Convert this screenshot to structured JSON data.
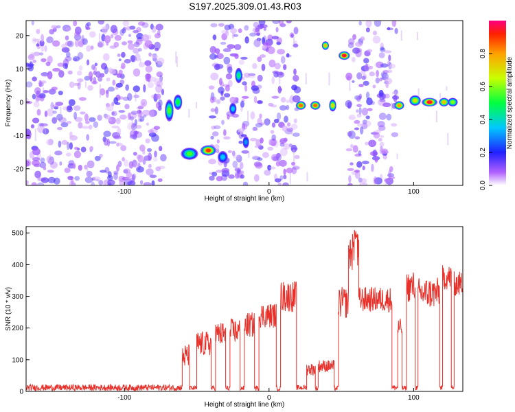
{
  "title": "S197.2025.309.01.43.R03",
  "chart_data": [
    {
      "type": "heatmap",
      "name": "spectrogram",
      "xlabel": "Height of straight line (km)",
      "ylabel": "Frequency (Hz)",
      "xlim": [
        -168,
        134
      ],
      "ylim": [
        -25,
        24.5
      ],
      "xticks": [
        -100,
        0,
        100
      ],
      "xtick_labels": [
        "-100",
        "0",
        "100"
      ],
      "yticks": [
        -20,
        -10,
        0,
        10,
        20
      ],
      "ytick_labels": [
        "-20",
        "-10",
        "0",
        "10",
        "20"
      ],
      "noise_regions": [
        [
          -168,
          -73
        ],
        [
          -12,
          20
        ],
        [
          55,
          88
        ],
        [
          -40,
          -15
        ]
      ],
      "features": [
        {
          "x": -69,
          "y": -2.5,
          "w": 4,
          "h": 6,
          "peak": 0.55
        },
        {
          "x": -63,
          "y": 0,
          "w": 4,
          "h": 4,
          "peak": 0.5
        },
        {
          "x": -55,
          "y": -15.5,
          "w": 10,
          "h": 3,
          "peak": 0.55
        },
        {
          "x": -42,
          "y": -14.5,
          "w": 9,
          "h": 2.5,
          "peak": 0.9
        },
        {
          "x": -32,
          "y": -16.5,
          "w": 5,
          "h": 3,
          "peak": 0.35
        },
        {
          "x": -25,
          "y": -2,
          "w": 3,
          "h": 3,
          "peak": 0.35
        },
        {
          "x": -21,
          "y": 8,
          "w": 3,
          "h": 4,
          "peak": 0.45
        },
        {
          "x": -16,
          "y": -12,
          "w": 2.5,
          "h": 3,
          "peak": 0.3
        },
        {
          "x": 22,
          "y": -1,
          "w": 5,
          "h": 2,
          "peak": 0.85
        },
        {
          "x": 32,
          "y": -1,
          "w": 5,
          "h": 2,
          "peak": 0.85
        },
        {
          "x": 39,
          "y": 17,
          "w": 3,
          "h": 2,
          "peak": 0.75
        },
        {
          "x": 44,
          "y": -1,
          "w": 3,
          "h": 3,
          "peak": 0.7
        },
        {
          "x": 52,
          "y": 14,
          "w": 6,
          "h": 2,
          "peak": 0.95
        },
        {
          "x": 90,
          "y": -1,
          "w": 5,
          "h": 2,
          "peak": 0.8
        },
        {
          "x": 101,
          "y": 0.5,
          "w": 6,
          "h": 2.5,
          "peak": 0.7
        },
        {
          "x": 111,
          "y": 0,
          "w": 9,
          "h": 2,
          "peak": 0.95
        },
        {
          "x": 121,
          "y": 0,
          "w": 5,
          "h": 2,
          "peak": 0.75
        },
        {
          "x": 127,
          "y": 0,
          "w": 5,
          "h": 2,
          "peak": 0.6
        }
      ],
      "colorbar": {
        "label": "Normalized spectral amplitude",
        "ticks": [
          0.0,
          0.2,
          0.4,
          0.6,
          0.8
        ],
        "tick_labels": [
          "0.0",
          "0.2",
          "0.4",
          "0.6",
          "0.8"
        ],
        "range": [
          0,
          1
        ]
      }
    },
    {
      "type": "line",
      "name": "snr",
      "xlabel": "Height of straight line (km)",
      "ylabel": "SNR (10 * v/v)",
      "xlim": [
        -168,
        134
      ],
      "ylim": [
        0,
        520
      ],
      "xticks": [
        -100,
        0,
        100
      ],
      "xtick_labels": [
        "-100",
        "0",
        "100"
      ],
      "yticks": [
        0,
        100,
        200,
        300,
        400,
        500
      ],
      "ytick_labels": [
        "0",
        "100",
        "200",
        "300",
        "400",
        "500"
      ],
      "color": "#e8302a",
      "segments": [
        {
          "x0": -168,
          "x1": -60,
          "base": 12,
          "noise": 10
        },
        {
          "x0": -60,
          "x1": -55,
          "base": 110,
          "noise": 40
        },
        {
          "x0": -55,
          "x1": -50,
          "base": 10,
          "noise": 8
        },
        {
          "x0": -50,
          "x1": -40,
          "base": 150,
          "noise": 40
        },
        {
          "x0": -40,
          "x1": -37,
          "base": 10,
          "noise": 8
        },
        {
          "x0": -37,
          "x1": -30,
          "base": 180,
          "noise": 40
        },
        {
          "x0": -30,
          "x1": -27,
          "base": 10,
          "noise": 8
        },
        {
          "x0": -27,
          "x1": -20,
          "base": 190,
          "noise": 40
        },
        {
          "x0": -20,
          "x1": -17,
          "base": 10,
          "noise": 8
        },
        {
          "x0": -17,
          "x1": -10,
          "base": 210,
          "noise": 40
        },
        {
          "x0": -10,
          "x1": -7,
          "base": 10,
          "noise": 8
        },
        {
          "x0": -7,
          "x1": 5,
          "base": 240,
          "noise": 40
        },
        {
          "x0": 5,
          "x1": 8,
          "base": 10,
          "noise": 8
        },
        {
          "x0": 8,
          "x1": 19,
          "base": 300,
          "noise": 50
        },
        {
          "x0": 19,
          "x1": 26,
          "base": 12,
          "noise": 8
        },
        {
          "x0": 26,
          "x1": 32,
          "base": 70,
          "noise": 20
        },
        {
          "x0": 32,
          "x1": 34,
          "base": 10,
          "noise": 8
        },
        {
          "x0": 34,
          "x1": 45,
          "base": 80,
          "noise": 20
        },
        {
          "x0": 45,
          "x1": 48,
          "base": 10,
          "noise": 8
        },
        {
          "x0": 48,
          "x1": 55,
          "base": 280,
          "noise": 50
        },
        {
          "x0": 55,
          "x1": 62,
          "base": 440,
          "noise": 60
        },
        {
          "x0": 62,
          "x1": 85,
          "base": 290,
          "noise": 40
        },
        {
          "x0": 85,
          "x1": 89,
          "base": 12,
          "noise": 8
        },
        {
          "x0": 89,
          "x1": 92,
          "base": 200,
          "noise": 30
        },
        {
          "x0": 92,
          "x1": 95,
          "base": 10,
          "noise": 8
        },
        {
          "x0": 95,
          "x1": 101,
          "base": 330,
          "noise": 50
        },
        {
          "x0": 101,
          "x1": 103,
          "base": 12,
          "noise": 8
        },
        {
          "x0": 103,
          "x1": 118,
          "base": 310,
          "noise": 50
        },
        {
          "x0": 118,
          "x1": 120,
          "base": 12,
          "noise": 8
        },
        {
          "x0": 120,
          "x1": 126,
          "base": 360,
          "noise": 40
        },
        {
          "x0": 126,
          "x1": 128,
          "base": 12,
          "noise": 8
        },
        {
          "x0": 128,
          "x1": 134,
          "base": 340,
          "noise": 40
        }
      ],
      "peak": {
        "x": 60,
        "y": 510
      }
    }
  ]
}
